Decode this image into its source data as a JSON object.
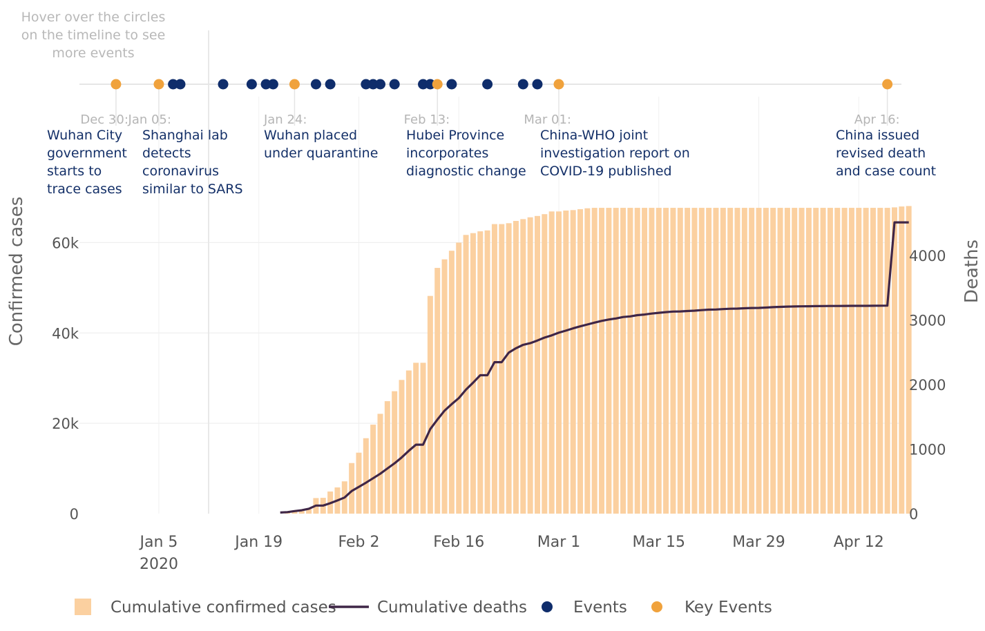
{
  "hint": "Hover over the circles on the timeline to see more events",
  "colors": {
    "cases_bar": "#fbd0a0",
    "deaths_line": "#3f2647",
    "event": "#0f2d6b",
    "key_event": "#f0a23c",
    "grid": "#ececec",
    "timeline": "#e6e6e6"
  },
  "key_events": [
    {
      "date": "Dec 30:",
      "lines": [
        "Wuhan City",
        "government",
        "starts to",
        "trace cases"
      ]
    },
    {
      "date": "Jan 05:",
      "lines": [
        "Shanghai lab",
        "detects",
        "coronavirus",
        "similar to SARS"
      ]
    },
    {
      "date": "Jan 24:",
      "lines": [
        "Wuhan placed",
        "under quarantine"
      ]
    },
    {
      "date": "Feb 13:",
      "lines": [
        "Hubei Province",
        "incorporates",
        "diagnostic change"
      ]
    },
    {
      "date": "Mar 01:",
      "lines": [
        "China-WHO joint",
        "investigation report on",
        "COVID-19 published"
      ]
    },
    {
      "date": "Apr 16:",
      "lines": [
        "China issued",
        "revised death",
        "and case count"
      ]
    }
  ],
  "chart_data": {
    "type": "bar",
    "x_start": "2019-12-22",
    "x_end": "2020-04-21",
    "x_ticks": [
      "Jan 5",
      "Jan 19",
      "Feb 2",
      "Feb 16",
      "Mar 1",
      "Mar 15",
      "Mar 29",
      "Apr 12"
    ],
    "x_tick_dates": [
      "2020-01-05",
      "2020-01-19",
      "2020-02-02",
      "2020-02-16",
      "2020-03-01",
      "2020-03-15",
      "2020-03-29",
      "2020-04-12"
    ],
    "x_year_label": "2020",
    "y_left": {
      "title": "Confirmed cases",
      "range": [
        0,
        70000
      ],
      "ticks": [
        0,
        20000,
        40000,
        60000
      ],
      "tick_labels": [
        "0",
        "20k",
        "40k",
        "60k"
      ]
    },
    "y_right": {
      "title": "Deaths",
      "range": [
        0,
        4700
      ],
      "ticks": [
        0,
        1000,
        2000,
        3000,
        4000
      ],
      "tick_labels": [
        "0",
        "1000",
        "2000",
        "3000",
        "4000"
      ]
    },
    "series": [
      {
        "name": "Cumulative confirmed cases",
        "type": "bar",
        "start_date": "2020-01-22",
        "values": [
          0,
          450,
          550,
          750,
          1050,
          3450,
          3500,
          4900,
          5800,
          7150,
          11200,
          13500,
          16700,
          19700,
          22100,
          24900,
          27100,
          29600,
          31700,
          33400,
          33400,
          48200,
          54400,
          56300,
          58200,
          60000,
          61700,
          62100,
          62500,
          62700,
          64100,
          64100,
          64300,
          64800,
          65200,
          65600,
          65900,
          66300,
          66900,
          66900,
          67100,
          67200,
          67400,
          67600,
          67700,
          67700,
          67700,
          67700,
          67700,
          67700,
          67700,
          67700,
          67700,
          67700,
          67700,
          67700,
          67700,
          67700,
          67700,
          67700,
          67700,
          67700,
          67700,
          67700,
          67700,
          67700,
          67700,
          67700,
          67700,
          67700,
          67700,
          67700,
          67700,
          67700,
          67700,
          67700,
          67700,
          67700,
          67700,
          67700,
          67700,
          67700,
          67700,
          67700,
          67700,
          67700,
          67800,
          68000,
          68100
        ]
      },
      {
        "name": "Cumulative deaths",
        "type": "line",
        "start_date": "2020-01-22",
        "values": [
          17,
          24,
          40,
          52,
          76,
          125,
          125,
          162,
          204,
          249,
          350,
          414,
          479,
          549,
          618,
          699,
          780,
          871,
          974,
          1068,
          1068,
          1310,
          1457,
          1596,
          1696,
          1789,
          1921,
          2029,
          2144,
          2144,
          2346,
          2346,
          2495,
          2563,
          2615,
          2641,
          2682,
          2727,
          2761,
          2803,
          2835,
          2871,
          2902,
          2931,
          2959,
          2986,
          3008,
          3024,
          3046,
          3056,
          3075,
          3085,
          3099,
          3111,
          3122,
          3130,
          3133,
          3139,
          3144,
          3153,
          3160,
          3163,
          3169,
          3174,
          3177,
          3182,
          3186,
          3187,
          3193,
          3199,
          3203,
          3207,
          3210,
          3212,
          3213,
          3215,
          3216,
          3217,
          3217,
          3218,
          3219,
          3219,
          3219,
          3220,
          3221,
          3222,
          4512,
          4512,
          4512
        ]
      }
    ],
    "events": {
      "name": "Events",
      "dates": [
        "2020-01-07",
        "2020-01-08",
        "2020-01-14",
        "2020-01-18",
        "2020-01-20",
        "2020-01-21",
        "2020-01-27",
        "2020-01-29",
        "2020-02-03",
        "2020-02-04",
        "2020-02-05",
        "2020-02-07",
        "2020-02-11",
        "2020-02-12",
        "2020-02-15",
        "2020-02-20",
        "2020-02-25",
        "2020-02-27"
      ]
    },
    "key_events": {
      "name": "Key Events",
      "dates": [
        "2019-12-30",
        "2020-01-05",
        "2020-01-24",
        "2020-02-13",
        "2020-03-01",
        "2020-04-16"
      ]
    },
    "legend": {
      "position": "bottom",
      "items": [
        "Cumulative confirmed cases",
        "Cumulative deaths",
        "Events",
        "Key Events"
      ]
    }
  }
}
